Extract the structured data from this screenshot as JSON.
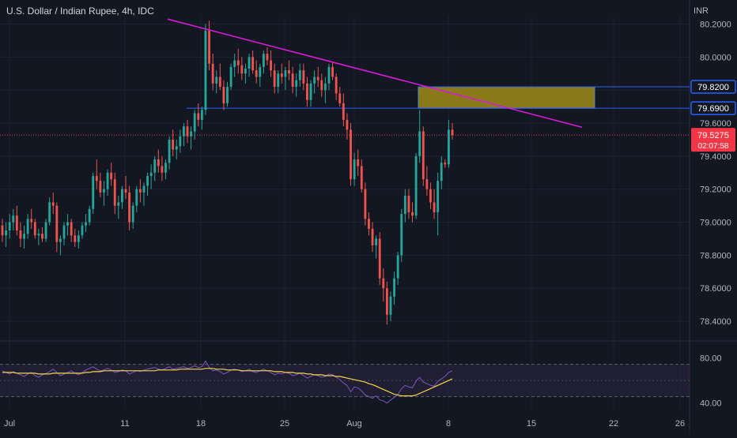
{
  "header": {
    "title": "U.S. Dollar / Indian Rupee, 4h, IDC",
    "currency": "INR"
  },
  "theme": {
    "background": "#131722",
    "grid": "#1e2230",
    "text": "#b2b5be",
    "up": "#26a69a",
    "down": "#ef5350",
    "trendline": "#d81ad8",
    "hline": "#2962ff",
    "zone_fill": "#b39b15",
    "zone_border": "#5b7fd6",
    "rsi_line": "#7e57c2",
    "rsi_ma": "#f5d547",
    "rsi_band": "#2a2540",
    "price_tag": "#f23645"
  },
  "chart_data": {
    "type": "candlestick",
    "x_ticks": [
      "Jul",
      "11",
      "18",
      "25",
      "Aug",
      "8",
      "15",
      "22",
      "26"
    ],
    "y_ticks": [
      "80.2000",
      "80.0000",
      "79.8000",
      "79.6000",
      "79.4000",
      "79.2000",
      "79.0000",
      "78.8000",
      "78.6000",
      "78.4000"
    ],
    "ylim": [
      78.3,
      80.25
    ],
    "current_price": "79.5275",
    "countdown": "02:07:58",
    "levels": [
      {
        "label": "79.8200",
        "value": 79.82
      },
      {
        "label": "79.6900",
        "value": 79.69
      }
    ],
    "zone": {
      "high": 79.82,
      "low": 79.69
    },
    "trendline": {
      "start_price": 80.23,
      "end_price": 79.575
    },
    "candles": [
      [
        78.98,
        79.02,
        78.88,
        78.92
      ],
      [
        78.92,
        79.0,
        78.85,
        78.95
      ],
      [
        78.95,
        79.05,
        78.9,
        79.0
      ],
      [
        79.0,
        79.08,
        78.95,
        79.04
      ],
      [
        79.04,
        79.1,
        78.92,
        78.95
      ],
      [
        78.95,
        79.0,
        78.85,
        78.9
      ],
      [
        78.9,
        78.98,
        78.84,
        78.93
      ],
      [
        78.93,
        79.05,
        78.9,
        79.02
      ],
      [
        79.02,
        79.08,
        78.96,
        79.0
      ],
      [
        79.0,
        79.02,
        78.9,
        78.92
      ],
      [
        78.92,
        78.96,
        78.86,
        78.93
      ],
      [
        78.93,
        78.97,
        78.88,
        78.9
      ],
      [
        78.9,
        79.02,
        78.88,
        79.0
      ],
      [
        79.0,
        79.15,
        78.98,
        79.12
      ],
      [
        79.12,
        79.18,
        79.05,
        79.1
      ],
      [
        79.1,
        79.12,
        78.82,
        78.88
      ],
      [
        78.88,
        78.92,
        78.8,
        78.9
      ],
      [
        78.9,
        79.0,
        78.86,
        78.98
      ],
      [
        78.98,
        79.05,
        78.92,
        79.0
      ],
      [
        79.0,
        79.02,
        78.88,
        78.92
      ],
      [
        78.92,
        78.96,
        78.85,
        78.88
      ],
      [
        78.88,
        78.95,
        78.84,
        78.92
      ],
      [
        78.92,
        79.0,
        78.9,
        78.98
      ],
      [
        78.98,
        79.05,
        78.94,
        79.0
      ],
      [
        79.0,
        79.1,
        78.98,
        79.08
      ],
      [
        79.08,
        79.3,
        79.05,
        79.28
      ],
      [
        79.28,
        79.38,
        79.2,
        79.25
      ],
      [
        79.25,
        79.3,
        79.15,
        79.18
      ],
      [
        79.18,
        79.25,
        79.1,
        79.2
      ],
      [
        79.2,
        79.32,
        79.16,
        79.3
      ],
      [
        79.3,
        79.36,
        79.22,
        79.26
      ],
      [
        79.26,
        79.3,
        79.05,
        79.1
      ],
      [
        79.1,
        79.16,
        79.02,
        79.12
      ],
      [
        79.12,
        79.22,
        79.08,
        79.2
      ],
      [
        79.2,
        79.28,
        79.14,
        79.18
      ],
      [
        79.18,
        79.22,
        78.95,
        79.0
      ],
      [
        79.0,
        79.12,
        78.96,
        79.1
      ],
      [
        79.1,
        79.22,
        79.06,
        79.2
      ],
      [
        79.2,
        79.26,
        79.12,
        79.18
      ],
      [
        79.18,
        79.24,
        79.1,
        79.22
      ],
      [
        79.22,
        79.3,
        79.16,
        79.28
      ],
      [
        79.28,
        79.35,
        79.2,
        79.3
      ],
      [
        79.3,
        79.4,
        79.25,
        79.38
      ],
      [
        79.38,
        79.44,
        79.3,
        79.34
      ],
      [
        79.34,
        79.4,
        79.25,
        79.3
      ],
      [
        79.3,
        79.38,
        79.26,
        79.36
      ],
      [
        79.36,
        79.52,
        79.32,
        79.5
      ],
      [
        79.5,
        79.56,
        79.4,
        79.44
      ],
      [
        79.44,
        79.5,
        79.38,
        79.46
      ],
      [
        79.46,
        79.56,
        79.42,
        79.52
      ],
      [
        79.52,
        79.6,
        79.46,
        79.58
      ],
      [
        79.58,
        79.62,
        79.48,
        79.52
      ],
      [
        79.52,
        79.58,
        79.44,
        79.55
      ],
      [
        79.55,
        79.68,
        79.5,
        79.66
      ],
      [
        79.66,
        79.72,
        79.58,
        79.62
      ],
      [
        79.62,
        79.7,
        79.56,
        79.68
      ],
      [
        79.68,
        80.2,
        79.65,
        80.16
      ],
      [
        80.16,
        80.22,
        79.92,
        79.96
      ],
      [
        79.96,
        80.02,
        79.8,
        79.84
      ],
      [
        79.84,
        79.92,
        79.78,
        79.88
      ],
      [
        79.88,
        79.96,
        79.8,
        79.82
      ],
      [
        79.82,
        79.86,
        79.68,
        79.72
      ],
      [
        79.72,
        79.85,
        79.7,
        79.82
      ],
      [
        79.82,
        79.96,
        79.8,
        79.94
      ],
      [
        79.94,
        80.02,
        79.88,
        79.98
      ],
      [
        79.98,
        80.05,
        79.9,
        79.95
      ],
      [
        79.95,
        80.0,
        79.86,
        79.9
      ],
      [
        79.9,
        79.96,
        79.84,
        79.93
      ],
      [
        79.93,
        80.02,
        79.88,
        80.0
      ],
      [
        80.0,
        80.04,
        79.9,
        79.92
      ],
      [
        79.92,
        79.98,
        79.84,
        79.88
      ],
      [
        79.88,
        79.96,
        79.82,
        79.94
      ],
      [
        79.94,
        80.04,
        79.9,
        80.02
      ],
      [
        80.02,
        80.06,
        79.95,
        79.98
      ],
      [
        79.98,
        80.04,
        79.88,
        79.92
      ],
      [
        79.92,
        79.96,
        79.78,
        79.82
      ],
      [
        79.82,
        79.92,
        79.78,
        79.9
      ],
      [
        79.9,
        79.96,
        79.84,
        79.88
      ],
      [
        79.88,
        79.94,
        79.8,
        79.92
      ],
      [
        79.92,
        79.98,
        79.86,
        79.9
      ],
      [
        79.9,
        79.94,
        79.78,
        79.82
      ],
      [
        79.82,
        79.9,
        79.76,
        79.86
      ],
      [
        79.86,
        79.96,
        79.82,
        79.92
      ],
      [
        79.92,
        79.96,
        79.8,
        79.84
      ],
      [
        79.84,
        79.88,
        79.7,
        79.74
      ],
      [
        79.74,
        79.86,
        79.7,
        79.84
      ],
      [
        79.84,
        79.92,
        79.78,
        79.88
      ],
      [
        79.88,
        79.94,
        79.82,
        79.86
      ],
      [
        79.86,
        79.9,
        79.76,
        79.8
      ],
      [
        79.8,
        79.88,
        79.72,
        79.84
      ],
      [
        79.84,
        79.96,
        79.8,
        79.94
      ],
      [
        79.94,
        79.97,
        79.86,
        79.88
      ],
      [
        79.88,
        79.9,
        79.74,
        79.78
      ],
      [
        79.78,
        79.82,
        79.7,
        79.72
      ],
      [
        79.72,
        79.78,
        79.58,
        79.62
      ],
      [
        79.62,
        79.66,
        79.5,
        79.56
      ],
      [
        79.56,
        79.6,
        79.22,
        79.26
      ],
      [
        79.26,
        79.42,
        79.22,
        79.38
      ],
      [
        79.38,
        79.44,
        79.28,
        79.34
      ],
      [
        79.34,
        79.38,
        79.18,
        79.2
      ],
      [
        79.2,
        79.24,
        78.98,
        79.02
      ],
      [
        79.02,
        79.06,
        78.92,
        78.96
      ],
      [
        78.96,
        79.0,
        78.82,
        78.86
      ],
      [
        78.86,
        78.92,
        78.78,
        78.9
      ],
      [
        78.9,
        78.94,
        78.62,
        78.66
      ],
      [
        78.66,
        78.72,
        78.52,
        78.6
      ],
      [
        78.6,
        78.64,
        78.38,
        78.44
      ],
      [
        78.44,
        78.58,
        78.4,
        78.55
      ],
      [
        78.55,
        78.7,
        78.5,
        78.66
      ],
      [
        78.66,
        78.82,
        78.62,
        78.8
      ],
      [
        78.8,
        79.08,
        78.76,
        79.05
      ],
      [
        79.05,
        79.2,
        79.0,
        79.16
      ],
      [
        79.16,
        79.2,
        79.02,
        79.06
      ],
      [
        79.06,
        79.12,
        79.0,
        79.04
      ],
      [
        79.04,
        79.42,
        79.02,
        79.4
      ],
      [
        79.4,
        79.68,
        79.36,
        79.55
      ],
      [
        79.55,
        79.58,
        79.22,
        79.26
      ],
      [
        79.26,
        79.34,
        79.16,
        79.2
      ],
      [
        79.2,
        79.24,
        79.08,
        79.12
      ],
      [
        79.12,
        79.2,
        79.02,
        79.06
      ],
      [
        79.06,
        79.3,
        78.92,
        79.25
      ],
      [
        79.25,
        79.4,
        79.2,
        79.36
      ],
      [
        79.36,
        79.38,
        79.33,
        79.35
      ],
      [
        79.35,
        79.62,
        79.33,
        79.56
      ],
      [
        79.56,
        79.6,
        79.5,
        79.5275
      ]
    ],
    "rsi": {
      "ticks": [
        "80.00",
        "40.00"
      ],
      "ylim": [
        15,
        95
      ],
      "band": [
        30,
        70
      ],
      "middle": 50,
      "values": [
        62,
        60,
        58,
        61,
        59,
        57,
        55,
        58,
        60,
        56,
        54,
        57,
        59,
        61,
        64,
        60,
        56,
        58,
        60,
        62,
        59,
        57,
        60,
        63,
        65,
        67,
        64,
        62,
        63,
        65,
        63,
        60,
        61,
        63,
        62,
        58,
        60,
        62,
        61,
        63,
        64,
        65,
        66,
        64,
        63,
        65,
        67,
        64,
        65,
        66,
        67,
        65,
        66,
        68,
        66,
        67,
        74,
        66,
        62,
        63,
        61,
        58,
        60,
        63,
        64,
        63,
        61,
        62,
        64,
        61,
        60,
        62,
        64,
        62,
        60,
        57,
        59,
        58,
        60,
        59,
        56,
        57,
        59,
        56,
        53,
        55,
        57,
        56,
        54,
        55,
        58,
        57,
        54,
        51,
        47,
        44,
        36,
        42,
        41,
        37,
        32,
        30,
        28,
        31,
        26,
        25,
        22,
        26,
        29,
        33,
        40,
        44,
        42,
        41,
        49,
        54,
        48,
        46,
        44,
        43,
        49,
        52,
        55,
        60,
        62
      ],
      "ma": [
        60,
        60,
        60,
        60,
        59,
        59,
        59,
        59,
        59,
        59,
        58,
        58,
        58,
        58,
        59,
        59,
        59,
        59,
        59,
        59,
        59,
        59,
        59,
        60,
        60,
        61,
        61,
        61,
        62,
        62,
        62,
        62,
        62,
        62,
        62,
        62,
        62,
        62,
        62,
        62,
        62,
        62,
        62,
        63,
        63,
        63,
        63,
        63,
        63,
        64,
        64,
        64,
        64,
        64,
        64,
        64,
        65,
        65,
        65,
        64,
        64,
        64,
        63,
        63,
        63,
        63,
        62,
        62,
        62,
        62,
        62,
        62,
        62,
        62,
        62,
        61,
        61,
        61,
        60,
        60,
        60,
        59,
        59,
        59,
        58,
        58,
        57,
        57,
        57,
        56,
        56,
        56,
        55,
        55,
        54,
        53,
        52,
        51,
        50,
        49,
        48,
        46,
        45,
        43,
        41,
        39,
        37,
        35,
        33,
        32,
        31,
        31,
        31,
        31,
        32,
        34,
        36,
        38,
        40,
        42,
        44,
        46,
        48,
        50,
        52
      ]
    }
  }
}
